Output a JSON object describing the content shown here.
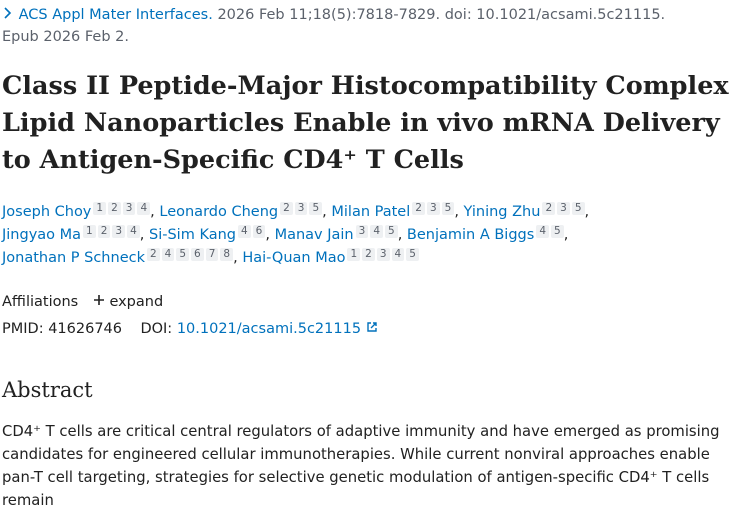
{
  "citation": {
    "journal": "ACS Appl Mater Interfaces.",
    "details": "2026 Feb 11;18(5):7818-7829. doi: 10.1021/acsami.5c21115.",
    "epub": "Epub 2026 Feb 2."
  },
  "title": "Class II Peptide-Major Histocompatibility Complex Lipid Nanoparticles Enable in vivo mRNA Delivery to Antigen-Specific CD4⁺ T Cells",
  "author_separator": ",",
  "authors": [
    {
      "name": "Joseph Choy",
      "affiliations": [
        1,
        2,
        3,
        4
      ]
    },
    {
      "name": "Leonardo Cheng",
      "affiliations": [
        2,
        3,
        5
      ]
    },
    {
      "name": "Milan Patel",
      "affiliations": [
        2,
        3,
        5
      ]
    },
    {
      "name": "Yining Zhu",
      "affiliations": [
        2,
        3,
        5
      ]
    },
    {
      "name": "Jingyao Ma",
      "affiliations": [
        1,
        2,
        3,
        4
      ]
    },
    {
      "name": "Si-Sim Kang",
      "affiliations": [
        4,
        6
      ]
    },
    {
      "name": "Manav Jain",
      "affiliations": [
        3,
        4,
        5
      ]
    },
    {
      "name": "Benjamin A Biggs",
      "affiliations": [
        4,
        5
      ]
    },
    {
      "name": "Jonathan P Schneck",
      "affiliations": [
        2,
        4,
        5,
        6,
        7,
        8
      ]
    },
    {
      "name": "Hai-Quan Mao",
      "affiliations": [
        1,
        2,
        3,
        4,
        5
      ]
    }
  ],
  "affiliations": {
    "label": "Affiliations",
    "toggle": "expand"
  },
  "ids": {
    "pmid_label": "PMID:",
    "pmid": "41626746",
    "doi_label": "DOI:",
    "doi": "10.1021/acsami.5c21115"
  },
  "abstract": {
    "heading": "Abstract",
    "text": "CD4⁺ T cells are critical central regulators of adaptive immunity and have emerged as promising candidates for engineered cellular immunotherapies. While current nonviral approaches enable pan-T cell targeting, strategies for selective genetic modulation of antigen-specific CD4⁺ T cells remain"
  }
}
